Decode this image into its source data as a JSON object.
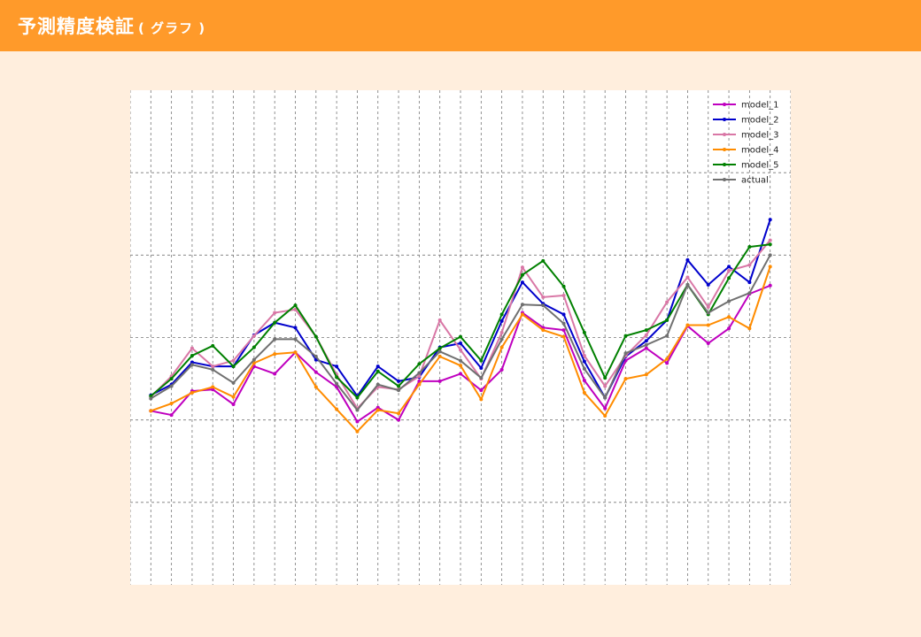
{
  "header": {
    "title": "予測精度検証",
    "subtitle": "( グラフ )"
  },
  "colors": {
    "header_bg": "#ff9a2a",
    "page_bg": "#ffeedd",
    "grid": "#777777"
  },
  "chart_data": {
    "type": "line",
    "x": [
      1,
      2,
      3,
      4,
      5,
      6,
      7,
      8,
      9,
      10,
      11,
      12,
      13,
      14,
      15,
      16,
      17,
      18,
      19,
      20,
      21,
      22,
      23,
      24,
      25,
      26,
      27,
      28,
      29,
      30,
      31
    ],
    "xlim": [
      0,
      32
    ],
    "ylim": [
      0,
      600
    ],
    "grid": {
      "x_step": 1,
      "y_step": 100
    },
    "legend_position": "top-right",
    "series": [
      {
        "name": "model_1",
        "color": "#bf00bf",
        "values": [
          211,
          206,
          235,
          237,
          219,
          265,
          256,
          282,
          258,
          240,
          198,
          215,
          200,
          247,
          247,
          256,
          236,
          261,
          330,
          312,
          309,
          248,
          214,
          272,
          287,
          269,
          314,
          293,
          311,
          353,
          363
        ]
      },
      {
        "name": "model_2",
        "color": "#0000cc",
        "values": [
          230,
          243,
          270,
          265,
          265,
          303,
          318,
          312,
          273,
          265,
          229,
          265,
          247,
          252,
          288,
          293,
          263,
          320,
          367,
          341,
          328,
          271,
          227,
          277,
          296,
          321,
          394,
          364,
          386,
          367,
          443
        ]
      },
      {
        "name": "model_3",
        "color": "#d977a6",
        "values": [
          228,
          253,
          287,
          265,
          272,
          302,
          330,
          334,
          301,
          255,
          214,
          240,
          237,
          253,
          321,
          285,
          250,
          306,
          385,
          349,
          351,
          278,
          241,
          278,
          303,
          343,
          373,
          337,
          381,
          388,
          418
        ]
      },
      {
        "name": "model_4",
        "color": "#ff8c00",
        "values": [
          211,
          220,
          233,
          240,
          228,
          269,
          280,
          282,
          240,
          213,
          186,
          212,
          208,
          243,
          277,
          266,
          225,
          288,
          328,
          309,
          301,
          233,
          205,
          250,
          255,
          274,
          315,
          315,
          325,
          311,
          386
        ]
      },
      {
        "name": "model_5",
        "color": "#008000",
        "values": [
          229,
          250,
          278,
          290,
          265,
          288,
          318,
          339,
          301,
          252,
          227,
          259,
          241,
          268,
          287,
          301,
          272,
          328,
          376,
          393,
          362,
          306,
          251,
          302,
          309,
          321,
          364,
          328,
          372,
          410,
          413
        ]
      },
      {
        "name": "actual",
        "color": "#707070",
        "values": [
          226,
          241,
          267,
          261,
          245,
          273,
          298,
          298,
          277,
          244,
          212,
          243,
          236,
          257,
          283,
          272,
          251,
          298,
          340,
          339,
          317,
          262,
          227,
          281,
          291,
          302,
          364,
          330,
          344,
          354,
          400
        ]
      }
    ]
  }
}
